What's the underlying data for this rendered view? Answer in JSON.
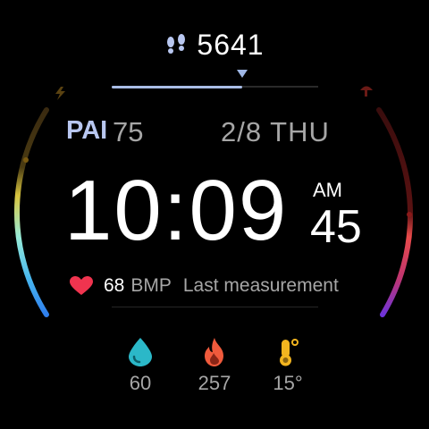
{
  "steps": {
    "value": "5641",
    "progress_percent": 63
  },
  "pai": {
    "label": "PAI",
    "value": "75"
  },
  "date": {
    "text": "2/8 THU"
  },
  "time": {
    "hours_minutes": "10:09",
    "ampm": "AM",
    "seconds": "45"
  },
  "heart_rate": {
    "value": "68",
    "unit": "BMP",
    "note": "Last measurement"
  },
  "metrics": [
    {
      "icon": "water-drop-icon",
      "value": "60",
      "color": "#2bb8c8"
    },
    {
      "icon": "flame-icon",
      "value": "257",
      "color": "#f05a3c"
    },
    {
      "icon": "thermometer-icon",
      "value": "15°",
      "color": "#f3b51f"
    }
  ],
  "colors": {
    "accent": "#a9bde6",
    "heart": "#f0344f",
    "left_arc_bottom": "#2f8ff0",
    "right_arc_bottom": "#7a33d6"
  }
}
